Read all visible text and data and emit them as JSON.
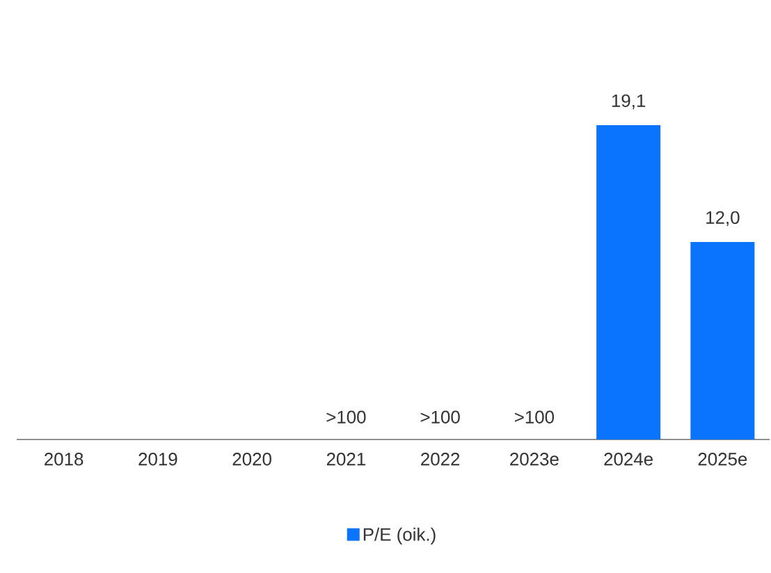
{
  "chart_data": {
    "type": "bar",
    "categories": [
      "2018",
      "2019",
      "2020",
      "2021",
      "2022",
      "2023e",
      "2024e",
      "2025e"
    ],
    "series": [
      {
        "name": "P/E (oik.)",
        "color": "#0a74ff",
        "values": [
          null,
          null,
          null,
          null,
          null,
          null,
          19.1,
          12.0
        ],
        "value_labels": [
          null,
          null,
          null,
          ">100",
          ">100",
          ">100",
          "19,1",
          "12,0"
        ]
      }
    ],
    "legend": "bottom"
  }
}
